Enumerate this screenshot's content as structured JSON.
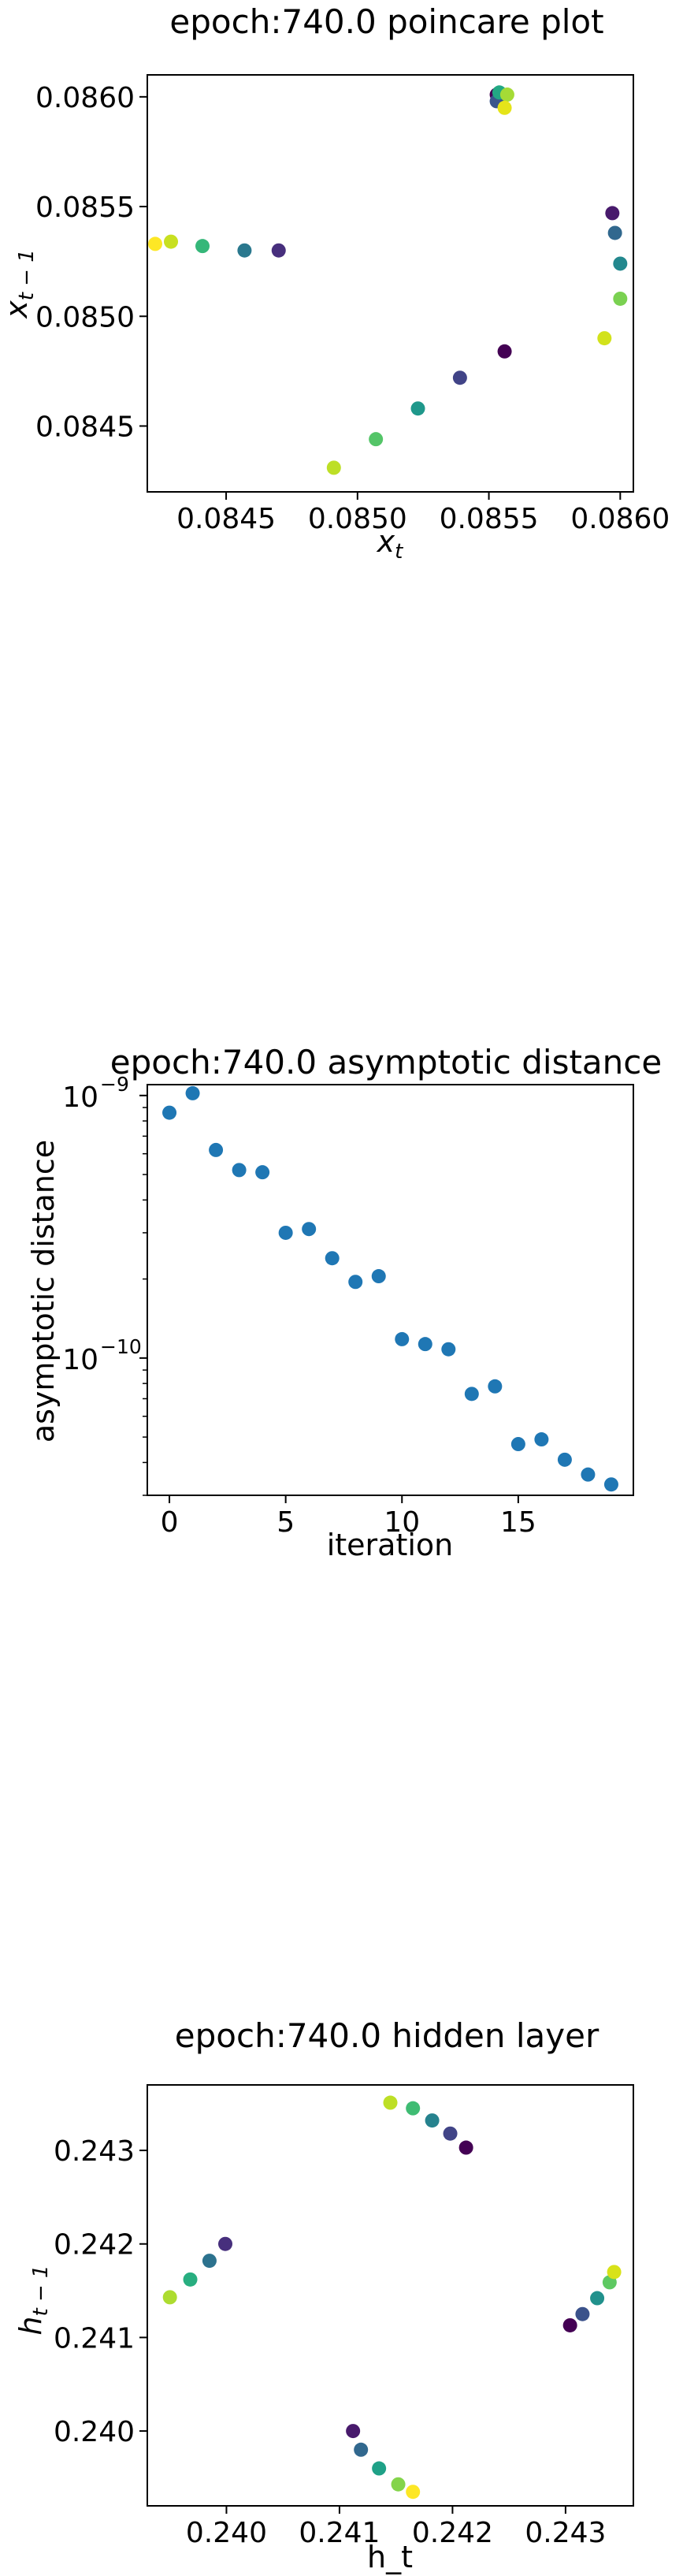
{
  "chart_data": [
    {
      "type": "scatter",
      "title": "epoch:740.0 poincare plot",
      "xlabel": "x_t",
      "ylabel": "x_{t-1}",
      "xlim": [
        0.0842,
        0.08605
      ],
      "ylim": [
        0.0842,
        0.0861
      ],
      "xticks": [
        0.0845,
        0.085,
        0.0855,
        0.086
      ],
      "xtick_labels": [
        "0.0845",
        "0.0850",
        "0.0855",
        "0.0860"
      ],
      "yticks": [
        0.0845,
        0.085,
        0.0855,
        0.086
      ],
      "ytick_labels": [
        "0.0845",
        "0.0850",
        "0.0855",
        "0.0860"
      ],
      "colormap": "viridis",
      "grid": false,
      "points": [
        {
          "x": 0.08553,
          "y": 0.08601,
          "color": "#440154"
        },
        {
          "x": 0.08597,
          "y": 0.08547,
          "color": "#481a6c"
        },
        {
          "x": 0.0847,
          "y": 0.0853,
          "color": "#472f7d"
        },
        {
          "x": 0.08539,
          "y": 0.08472,
          "color": "#414487"
        },
        {
          "x": 0.08553,
          "y": 0.08598,
          "color": "#39568c"
        },
        {
          "x": 0.08598,
          "y": 0.08538,
          "color": "#31688e"
        },
        {
          "x": 0.08457,
          "y": 0.0853,
          "color": "#2a788e"
        },
        {
          "x": 0.086,
          "y": 0.08524,
          "color": "#23888e"
        },
        {
          "x": 0.08523,
          "y": 0.08458,
          "color": "#1f988b"
        },
        {
          "x": 0.08554,
          "y": 0.08602,
          "color": "#22a884"
        },
        {
          "x": 0.08441,
          "y": 0.08532,
          "color": "#35b779"
        },
        {
          "x": 0.08507,
          "y": 0.08444,
          "color": "#54c568"
        },
        {
          "x": 0.086,
          "y": 0.08508,
          "color": "#7ad151"
        },
        {
          "x": 0.08557,
          "y": 0.08601,
          "color": "#a5db36"
        },
        {
          "x": 0.08491,
          "y": 0.08431,
          "color": "#bddf26"
        },
        {
          "x": 0.08429,
          "y": 0.08534,
          "color": "#c8e020"
        },
        {
          "x": 0.08594,
          "y": 0.0849,
          "color": "#d2e21b"
        },
        {
          "x": 0.08423,
          "y": 0.08533,
          "color": "#fde725"
        },
        {
          "x": 0.08556,
          "y": 0.08595,
          "color": "#e5e419"
        },
        {
          "x": 0.08556,
          "y": 0.08484,
          "color": "#440154"
        }
      ]
    },
    {
      "type": "scatter",
      "title": "epoch:740.0 asymptotic distance",
      "xlabel": "iteration",
      "ylabel": "asymptotic distance",
      "xscale": "linear",
      "yscale": "log",
      "xlim": [
        -0.95,
        19.95
      ],
      "ylim": [
        3e-11,
        1.1e-09
      ],
      "xticks": [
        0,
        5,
        10,
        15
      ],
      "xtick_labels": [
        "0",
        "5",
        "10",
        "15"
      ],
      "ytick_labels": [
        "10",
        "10"
      ],
      "ytick_exponents": [
        "−9",
        "−10"
      ],
      "color": "#1f77b4",
      "grid": false,
      "x": [
        0,
        1,
        2,
        3,
        4,
        5,
        6,
        7,
        8,
        9,
        10,
        11,
        12,
        13,
        14,
        15,
        16,
        17,
        18,
        19
      ],
      "y": [
        8.6e-10,
        1.02e-09,
        6.2e-10,
        5.2e-10,
        5.1e-10,
        3e-10,
        3.1e-10,
        2.4e-10,
        1.95e-10,
        2.05e-10,
        1.18e-10,
        1.13e-10,
        1.08e-10,
        7.3e-11,
        7.8e-11,
        4.7e-11,
        4.9e-11,
        4.1e-11,
        3.6e-11,
        3.3e-11
      ]
    },
    {
      "type": "scatter",
      "title": "epoch:740.0 hidden layer",
      "xlabel": "h_t",
      "ylabel": "h_{t-1}",
      "xlim": [
        0.2393,
        0.2436
      ],
      "ylim": [
        0.2392,
        0.2437
      ],
      "xticks": [
        0.24,
        0.241,
        0.242,
        0.243
      ],
      "xtick_labels": [
        "0.240",
        "0.241",
        "0.242",
        "0.243"
      ],
      "yticks": [
        0.24,
        0.241,
        0.242,
        0.243
      ],
      "ytick_labels": [
        "0.240",
        "0.241",
        "0.242",
        "0.243"
      ],
      "colormap": "viridis",
      "grid": false,
      "points": [
        {
          "x": 0.24212,
          "y": 0.24303,
          "color": "#440154"
        },
        {
          "x": 0.24304,
          "y": 0.24113,
          "color": "#440154"
        },
        {
          "x": 0.24112,
          "y": 0.24,
          "color": "#481a6c"
        },
        {
          "x": 0.23999,
          "y": 0.242,
          "color": "#472f7d"
        },
        {
          "x": 0.24198,
          "y": 0.24318,
          "color": "#414487"
        },
        {
          "x": 0.24315,
          "y": 0.24125,
          "color": "#3b528b"
        },
        {
          "x": 0.24119,
          "y": 0.2398,
          "color": "#31688e"
        },
        {
          "x": 0.23985,
          "y": 0.24182,
          "color": "#2c728e"
        },
        {
          "x": 0.24182,
          "y": 0.24332,
          "color": "#26828e"
        },
        {
          "x": 0.24328,
          "y": 0.24142,
          "color": "#21918c"
        },
        {
          "x": 0.24135,
          "y": 0.2396,
          "color": "#1fa187"
        },
        {
          "x": 0.23968,
          "y": 0.24162,
          "color": "#28ae80"
        },
        {
          "x": 0.24165,
          "y": 0.24345,
          "color": "#3fbc73"
        },
        {
          "x": 0.24339,
          "y": 0.24159,
          "color": "#5ec962"
        },
        {
          "x": 0.24152,
          "y": 0.23943,
          "color": "#84d44b"
        },
        {
          "x": 0.2395,
          "y": 0.24143,
          "color": "#addc30"
        },
        {
          "x": 0.24145,
          "y": 0.24351,
          "color": "#bddf26"
        },
        {
          "x": 0.24343,
          "y": 0.2417,
          "color": "#d8e219"
        },
        {
          "x": 0.24165,
          "y": 0.23935,
          "color": "#fde725"
        }
      ]
    }
  ]
}
